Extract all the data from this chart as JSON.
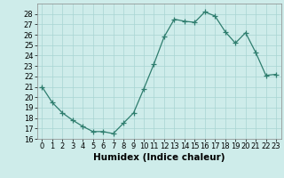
{
  "x": [
    0,
    1,
    2,
    3,
    4,
    5,
    6,
    7,
    8,
    9,
    10,
    11,
    12,
    13,
    14,
    15,
    16,
    17,
    18,
    19,
    20,
    21,
    22,
    23
  ],
  "y": [
    21,
    19.5,
    18.5,
    17.8,
    17.2,
    16.7,
    16.7,
    16.5,
    17.5,
    18.5,
    20.8,
    23.2,
    25.8,
    27.5,
    27.3,
    27.2,
    28.2,
    27.8,
    26.3,
    25.2,
    26.2,
    24.3,
    22.1,
    22.2
  ],
  "line_color": "#2e7d6e",
  "marker": "+",
  "marker_size": 4,
  "marker_linewidth": 0.9,
  "bg_color": "#ceecea",
  "grid_color": "#a8d5d2",
  "xlabel": "Humidex (Indice chaleur)",
  "ylim": [
    16,
    29
  ],
  "xlim": [
    -0.5,
    23.5
  ],
  "yticks": [
    16,
    17,
    18,
    19,
    20,
    21,
    22,
    23,
    24,
    25,
    26,
    27,
    28
  ],
  "xticks": [
    0,
    1,
    2,
    3,
    4,
    5,
    6,
    7,
    8,
    9,
    10,
    11,
    12,
    13,
    14,
    15,
    16,
    17,
    18,
    19,
    20,
    21,
    22,
    23
  ],
  "tick_label_fontsize": 6.0,
  "xlabel_fontsize": 7.5,
  "linewidth": 0.9
}
